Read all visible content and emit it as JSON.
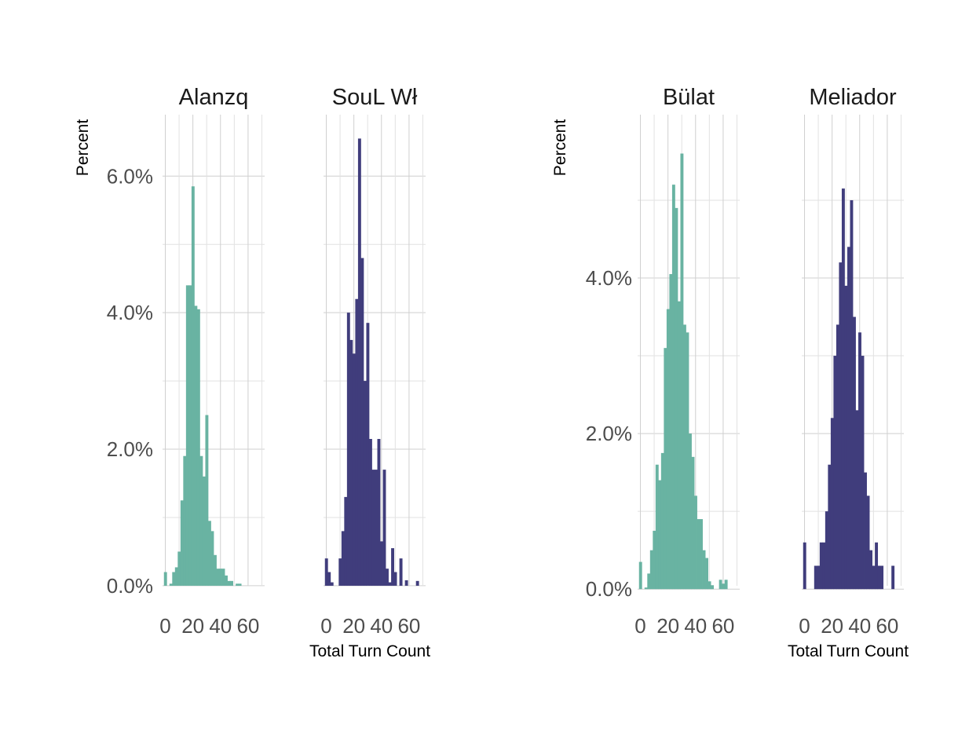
{
  "chart_data": [
    {
      "type": "bar",
      "ylabel": "Percent",
      "xlabel": "Total Turn Count",
      "y_axis": {
        "ylim": [
          -0.3,
          6.9
        ],
        "major_ticks": [
          0,
          2,
          4,
          6
        ],
        "tick_labels": [
          "0.0%",
          "2.0%",
          "4.0%",
          "6.0%"
        ]
      },
      "panels": [
        {
          "title": "Alanzq",
          "color": "#69b3a2",
          "xlim": [
            -2,
            72
          ],
          "x_ticks": [
            0,
            20,
            40,
            60
          ],
          "x_tick_labels": [
            "0",
            "20",
            "40",
            "60"
          ],
          "bin_width": 2,
          "bin_start": -1,
          "values": [
            0.2,
            0,
            0.03,
            0.2,
            0.27,
            0.5,
            1.25,
            1.9,
            4.4,
            4.4,
            5.85,
            4.1,
            4.05,
            1.9,
            1.6,
            2.5,
            0.95,
            0.8,
            0.45,
            0.25,
            0.25,
            0.25,
            0.15,
            0.07,
            0.07,
            0,
            0.03,
            0.03
          ]
        },
        {
          "title": "SouL Wł",
          "color": "#403d7c",
          "xlim": [
            -2,
            72
          ],
          "x_ticks": [
            0,
            20,
            40,
            60
          ],
          "x_tick_labels": [
            "0",
            "20",
            "40",
            "60"
          ],
          "bin_width": 2,
          "bin_start": -1,
          "values": [
            0.4,
            0.2,
            0.05,
            0,
            0,
            0.4,
            0.8,
            1.3,
            4.0,
            3.6,
            3.4,
            4.2,
            6.55,
            4.8,
            3.0,
            3.85,
            2.15,
            1.7,
            1.7,
            2.15,
            0.65,
            1.7,
            0.25,
            0.05,
            0.55,
            0.2,
            0,
            0.4,
            0,
            0.08,
            0,
            0,
            0,
            0.07
          ]
        },
        {
          "title": "Bülat",
          "color": "#69b3a2",
          "xlim": [
            -2,
            72
          ],
          "x_ticks": [
            0,
            20,
            40,
            60
          ],
          "x_tick_labels": [
            "0",
            "20",
            "40",
            "60"
          ],
          "bin_width": 2,
          "bin_start": -1,
          "values": [
            0.35,
            0,
            0.02,
            0.2,
            0.5,
            0.75,
            1.6,
            1.4,
            1.75,
            3.1,
            3.6,
            4.05,
            5.2,
            4.9,
            3.7,
            5.6,
            3.4,
            3.3,
            2.0,
            1.7,
            1.2,
            0.9,
            0.9,
            0.5,
            0.4,
            0.1,
            0.05,
            0,
            0,
            0.12,
            0.07,
            0.12
          ]
        },
        {
          "title": "Meliador",
          "color": "#403d7c",
          "xlim": [
            -2,
            72
          ],
          "x_ticks": [
            0,
            20,
            40,
            60
          ],
          "x_tick_labels": [
            "0",
            "20",
            "40",
            "60"
          ],
          "bin_width": 2,
          "bin_start": -1,
          "values": [
            0.6,
            0,
            0,
            0,
            0.3,
            0.3,
            0.6,
            0.6,
            1.0,
            1.6,
            2.2,
            3.0,
            3.4,
            4.2,
            5.15,
            3.9,
            4.4,
            5.0,
            3.5,
            2.3,
            3.3,
            3.0,
            1.5,
            1.2,
            0.5,
            0.3,
            0.6,
            0.3,
            0.3,
            0,
            0,
            0,
            0.3
          ]
        }
      ]
    },
    {
      "type": "bar",
      "ylabel": "Percent",
      "xlabel": "Total Turn Count",
      "y_axis": {
        "ylim": [
          -0.3,
          6.9
        ],
        "major_ticks": [
          0,
          2,
          4,
          6
        ],
        "tick_labels": [
          "0.0%",
          "2.0%",
          "4.0%",
          "6.0%"
        ]
      },
      "panels": [
        {
          "title": "Alanzq",
          "color": "#69b3a2",
          "xlim": [
            -2,
            72
          ],
          "x_ticks": [
            0,
            20,
            40,
            60
          ],
          "x_tick_labels": [
            "0",
            "20",
            "40",
            "60"
          ],
          "bin_width": 2,
          "bin_start": -1,
          "values": []
        }
      ]
    }
  ],
  "layout": {
    "note": ""
  }
}
